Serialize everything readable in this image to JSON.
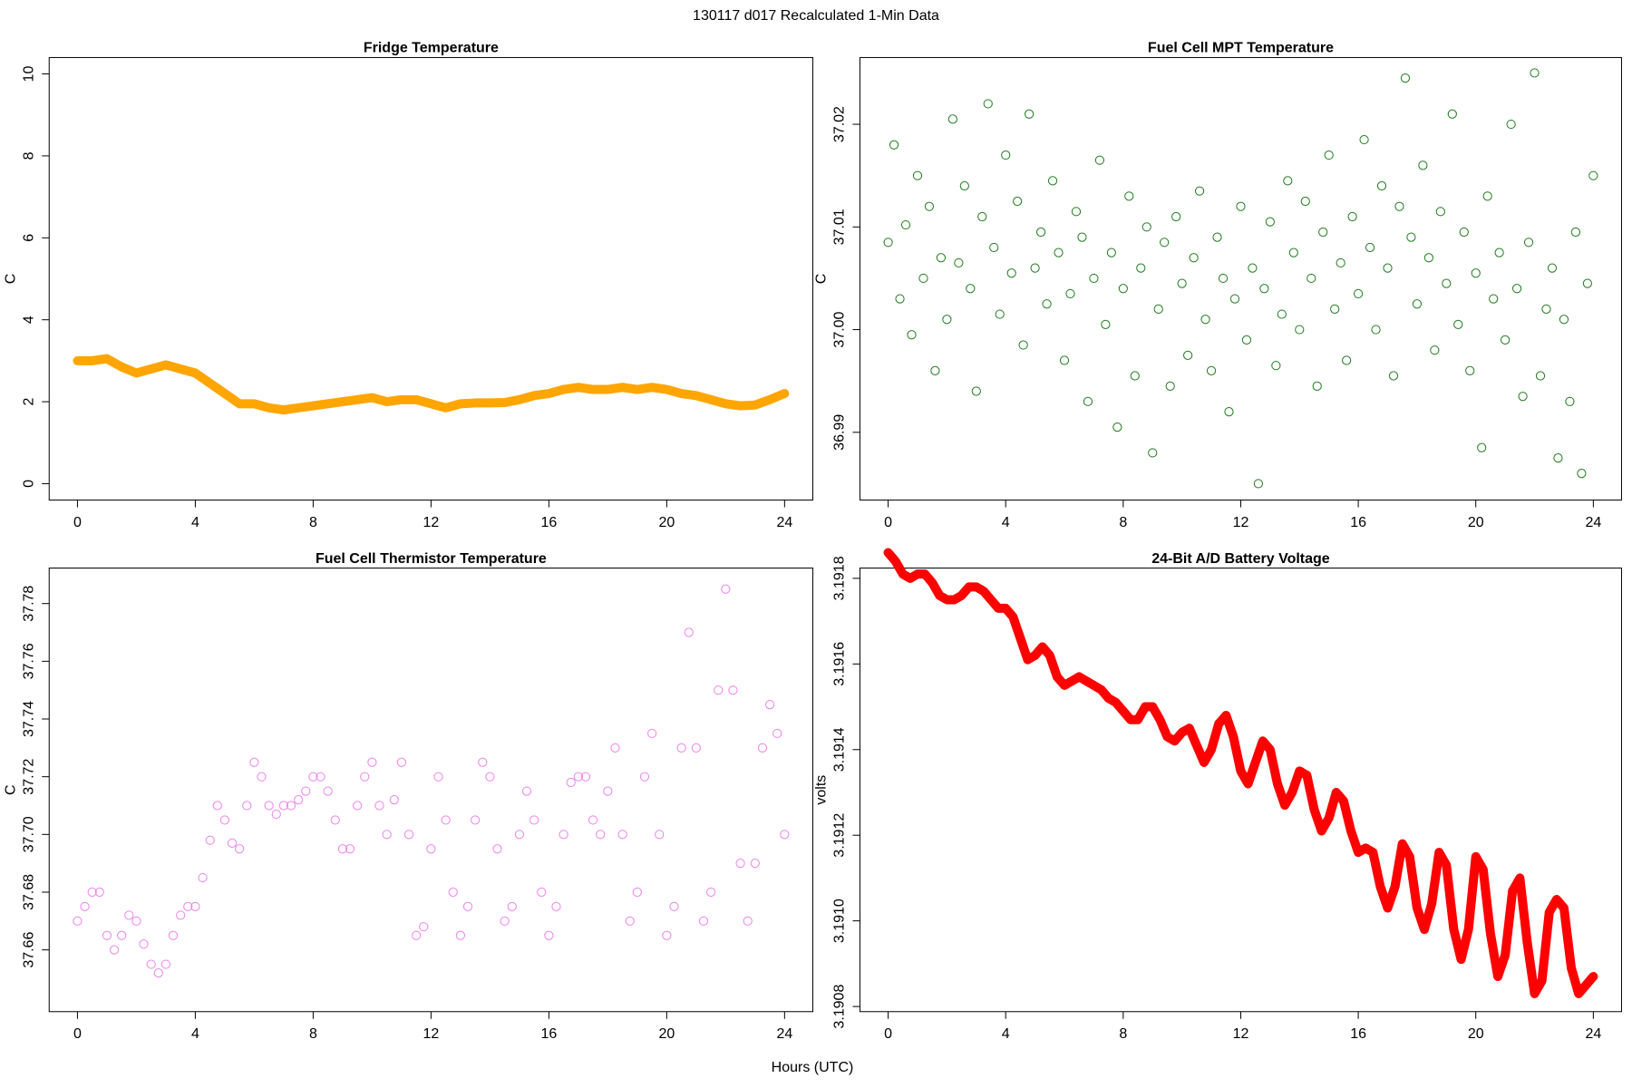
{
  "title": "130117   d017   Recalculated 1-Min Data",
  "xlabel": "Hours (UTC)",
  "chart_data": [
    {
      "type": "line",
      "title": "Fridge Temperature",
      "ylabel": "C",
      "color": "#FFA500",
      "xlim": [
        -0.96,
        24.96
      ],
      "xticks": [
        0,
        4,
        8,
        12,
        16,
        20,
        24
      ],
      "ylim": [
        -0.4,
        10.4
      ],
      "yticks": [
        0,
        2,
        4,
        6,
        8,
        10
      ],
      "x": [
        0,
        0.5,
        1,
        1.5,
        2,
        2.5,
        3,
        3.5,
        4,
        4.5,
        5,
        5.5,
        6,
        6.5,
        7,
        7.5,
        8,
        8.5,
        9,
        9.5,
        10,
        10.5,
        11,
        11.5,
        12,
        12.5,
        13,
        13.5,
        14,
        14.5,
        15,
        15.5,
        16,
        16.5,
        17,
        17.5,
        18,
        18.5,
        19,
        19.5,
        20,
        20.5,
        21,
        21.5,
        22,
        22.5,
        23,
        23.5,
        24
      ],
      "values": [
        3.0,
        3.0,
        3.05,
        2.85,
        2.7,
        2.8,
        2.9,
        2.8,
        2.7,
        2.45,
        2.2,
        1.95,
        1.95,
        1.85,
        1.8,
        1.85,
        1.9,
        1.95,
        2.0,
        2.05,
        2.1,
        2.0,
        2.05,
        2.05,
        1.95,
        1.85,
        1.95,
        1.97,
        1.97,
        1.98,
        2.05,
        2.15,
        2.2,
        2.3,
        2.35,
        2.3,
        2.3,
        2.35,
        2.3,
        2.35,
        2.3,
        2.2,
        2.15,
        2.05,
        1.95,
        1.9,
        1.92,
        2.05,
        2.2
      ]
    },
    {
      "type": "scatter",
      "title": "Fuel Cell MPT Temperature",
      "ylabel": "C",
      "color": "#1E7B1E",
      "xlim": [
        -0.96,
        24.96
      ],
      "xticks": [
        0,
        4,
        8,
        12,
        16,
        20,
        24
      ],
      "ylim": [
        36.9834,
        37.0265
      ],
      "yticks": [
        36.99,
        {
          "value": 37.0,
          "label": "37.00"
        },
        37.01,
        37.02
      ],
      "x": [
        0,
        0.2,
        0.4,
        0.6,
        0.8,
        1,
        1.2,
        1.4,
        1.6,
        1.8,
        2,
        2.2,
        2.4,
        2.6,
        2.8,
        3,
        3.2,
        3.4,
        3.6,
        3.8,
        4,
        4.2,
        4.4,
        4.6,
        4.8,
        5,
        5.2,
        5.4,
        5.6,
        5.8,
        6,
        6.2,
        6.4,
        6.6,
        6.8,
        7,
        7.2,
        7.4,
        7.6,
        7.8,
        8,
        8.2,
        8.4,
        8.6,
        8.8,
        9,
        9.2,
        9.4,
        9.6,
        9.8,
        10,
        10.2,
        10.4,
        10.6,
        10.8,
        11,
        11.2,
        11.4,
        11.6,
        11.8,
        12,
        12.2,
        12.4,
        12.6,
        12.8,
        13,
        13.2,
        13.4,
        13.6,
        13.8,
        14,
        14.2,
        14.4,
        14.6,
        14.8,
        15,
        15.2,
        15.4,
        15.6,
        15.8,
        16,
        16.2,
        16.4,
        16.6,
        16.8,
        17,
        17.2,
        17.4,
        17.6,
        17.8,
        18,
        18.2,
        18.4,
        18.6,
        18.8,
        19,
        19.2,
        19.4,
        19.6,
        19.8,
        20,
        20.2,
        20.4,
        20.6,
        20.8,
        21,
        21.2,
        21.4,
        21.6,
        21.8,
        22,
        22.2,
        22.4,
        22.6,
        22.8,
        23,
        23.2,
        23.4,
        23.6,
        23.8,
        24
      ],
      "values": [
        37.0085,
        37.018,
        37.003,
        37.0102,
        36.9995,
        37.015,
        37.005,
        37.012,
        36.996,
        37.007,
        37.001,
        37.0205,
        37.0065,
        37.014,
        37.004,
        36.994,
        37.011,
        37.022,
        37.008,
        37.0015,
        37.017,
        37.0055,
        37.0125,
        36.9985,
        37.021,
        37.006,
        37.0095,
        37.0025,
        37.0145,
        37.0075,
        36.997,
        37.0035,
        37.0115,
        37.009,
        36.993,
        37.005,
        37.0165,
        37.0005,
        37.0075,
        36.9905,
        37.004,
        37.013,
        36.9955,
        37.006,
        37.01,
        36.988,
        37.002,
        37.0085,
        36.9945,
        37.011,
        37.0045,
        36.9975,
        37.007,
        37.0135,
        37.001,
        36.996,
        37.009,
        37.005,
        36.992,
        37.003,
        37.012,
        36.999,
        37.006,
        36.985,
        37.004,
        37.0105,
        36.9965,
        37.0015,
        37.0145,
        37.0075,
        37.0,
        37.0125,
        37.005,
        36.9945,
        37.0095,
        37.017,
        37.002,
        37.0065,
        36.997,
        37.011,
        37.0035,
        37.0185,
        37.008,
        37.0,
        37.014,
        37.006,
        36.9955,
        37.012,
        37.0245,
        37.009,
        37.0025,
        37.016,
        37.007,
        36.998,
        37.0115,
        37.0045,
        37.021,
        37.0005,
        37.0095,
        36.996,
        37.0055,
        36.9885,
        37.013,
        37.003,
        37.0075,
        36.999,
        37.02,
        37.004,
        36.9935,
        37.0085,
        37.025,
        36.9955,
        37.002,
        37.006,
        36.9875,
        37.001,
        36.993,
        37.0095,
        36.986,
        37.0045,
        37.015
      ]
    },
    {
      "type": "scatter",
      "title": "Fuel Cell Thermistor Temperature",
      "ylabel": "C",
      "color": "#EE82EE",
      "xlim": [
        -0.96,
        24.96
      ],
      "xticks": [
        0,
        4,
        8,
        12,
        16,
        20,
        24
      ],
      "ylim": [
        37.6386,
        37.7923
      ],
      "yticks": [
        37.66,
        37.68,
        {
          "value": 37.7,
          "label": "37.70"
        },
        37.72,
        37.74,
        37.76,
        37.78
      ],
      "x": [
        0,
        0.25,
        0.5,
        0.75,
        1,
        1.25,
        1.5,
        1.75,
        2,
        2.25,
        2.5,
        2.75,
        3,
        3.25,
        3.5,
        3.75,
        4,
        4.25,
        4.5,
        4.75,
        5,
        5.25,
        5.5,
        5.75,
        6,
        6.25,
        6.5,
        6.75,
        7,
        7.25,
        7.5,
        7.75,
        8,
        8.25,
        8.5,
        8.75,
        9,
        9.25,
        9.5,
        9.75,
        10,
        10.25,
        10.5,
        10.75,
        11,
        11.25,
        11.5,
        11.75,
        12,
        12.25,
        12.5,
        12.75,
        13,
        13.25,
        13.5,
        13.75,
        14,
        14.25,
        14.5,
        14.75,
        15,
        15.25,
        15.5,
        15.75,
        16,
        16.25,
        16.5,
        16.75,
        17,
        17.25,
        17.5,
        17.75,
        18,
        18.25,
        18.5,
        18.75,
        19,
        19.25,
        19.5,
        19.75,
        20,
        20.25,
        20.5,
        20.75,
        21,
        21.25,
        21.5,
        21.75,
        22,
        22.25,
        22.5,
        22.75,
        23,
        23.25,
        23.5,
        23.75,
        24
      ],
      "values": [
        37.67,
        37.675,
        37.68,
        37.68,
        37.665,
        37.66,
        37.665,
        37.672,
        37.67,
        37.662,
        37.655,
        37.652,
        37.655,
        37.665,
        37.672,
        37.675,
        37.675,
        37.685,
        37.698,
        37.71,
        37.705,
        37.697,
        37.695,
        37.71,
        37.725,
        37.72,
        37.71,
        37.707,
        37.71,
        37.71,
        37.712,
        37.715,
        37.72,
        37.72,
        37.715,
        37.705,
        37.695,
        37.695,
        37.71,
        37.72,
        37.725,
        37.71,
        37.7,
        37.712,
        37.725,
        37.7,
        37.665,
        37.668,
        37.695,
        37.72,
        37.705,
        37.68,
        37.665,
        37.675,
        37.705,
        37.725,
        37.72,
        37.695,
        37.67,
        37.675,
        37.7,
        37.715,
        37.705,
        37.68,
        37.665,
        37.675,
        37.7,
        37.718,
        37.72,
        37.72,
        37.705,
        37.7,
        37.715,
        37.73,
        37.7,
        37.67,
        37.68,
        37.72,
        37.735,
        37.7,
        37.665,
        37.675,
        37.73,
        37.77,
        37.73,
        37.67,
        37.68,
        37.75,
        37.785,
        37.75,
        37.69,
        37.67,
        37.69,
        37.73,
        37.745,
        37.735,
        37.7
      ]
    },
    {
      "type": "line",
      "title": "24-Bit A/D Battery Voltage",
      "ylabel": "volts",
      "color": "#FF0000",
      "xlim": [
        -0.96,
        24.96
      ],
      "xticks": [
        0,
        4,
        8,
        12,
        16,
        20,
        24
      ],
      "ylim": [
        3.190788,
        3.191824
      ],
      "yticks": [
        3.1908,
        {
          "value": 3.191,
          "label": "3.1910"
        },
        3.1912,
        3.1914,
        3.1916,
        3.1918
      ],
      "x": [
        0,
        0.25,
        0.5,
        0.75,
        1,
        1.25,
        1.5,
        1.75,
        2,
        2.25,
        2.5,
        2.75,
        3,
        3.25,
        3.5,
        3.75,
        4,
        4.25,
        4.5,
        4.75,
        5,
        5.25,
        5.5,
        5.75,
        6,
        6.25,
        6.5,
        6.75,
        7,
        7.25,
        7.5,
        7.75,
        8,
        8.25,
        8.5,
        8.75,
        9,
        9.25,
        9.5,
        9.75,
        10,
        10.25,
        10.5,
        10.75,
        11,
        11.25,
        11.5,
        11.75,
        12,
        12.25,
        12.5,
        12.75,
        13,
        13.25,
        13.5,
        13.75,
        14,
        14.25,
        14.5,
        14.75,
        15,
        15.25,
        15.5,
        15.75,
        16,
        16.25,
        16.5,
        16.75,
        17,
        17.25,
        17.5,
        17.75,
        18,
        18.25,
        18.5,
        18.75,
        19,
        19.25,
        19.5,
        19.75,
        20,
        20.25,
        20.5,
        20.75,
        21,
        21.25,
        21.5,
        21.75,
        22,
        22.25,
        22.5,
        22.75,
        23,
        23.25,
        23.5,
        23.75,
        24
      ],
      "values": [
        3.19186,
        3.19184,
        3.19181,
        3.1918,
        3.19181,
        3.19181,
        3.19179,
        3.19176,
        3.19175,
        3.19175,
        3.19176,
        3.19178,
        3.19178,
        3.19177,
        3.19175,
        3.19173,
        3.19173,
        3.19171,
        3.19166,
        3.19161,
        3.19162,
        3.19164,
        3.19162,
        3.19157,
        3.19155,
        3.19156,
        3.19157,
        3.19156,
        3.19155,
        3.19154,
        3.19152,
        3.19151,
        3.19149,
        3.19147,
        3.19147,
        3.1915,
        3.1915,
        3.19147,
        3.19143,
        3.19142,
        3.19144,
        3.19145,
        3.19141,
        3.19137,
        3.1914,
        3.19146,
        3.19148,
        3.19143,
        3.19135,
        3.19132,
        3.19137,
        3.19142,
        3.1914,
        3.19132,
        3.19127,
        3.1913,
        3.19135,
        3.19134,
        3.19126,
        3.19121,
        3.19124,
        3.1913,
        3.19128,
        3.19121,
        3.19116,
        3.19117,
        3.19116,
        3.19108,
        3.19103,
        3.19108,
        3.19118,
        3.19115,
        3.19103,
        3.19098,
        3.19104,
        3.19116,
        3.19113,
        3.19098,
        3.19091,
        3.19098,
        3.19115,
        3.19112,
        3.19097,
        3.19087,
        3.19092,
        3.19107,
        3.1911,
        3.19095,
        3.19083,
        3.19086,
        3.19102,
        3.19105,
        3.19103,
        3.19089,
        3.19083,
        3.19085,
        3.19087
      ]
    }
  ]
}
